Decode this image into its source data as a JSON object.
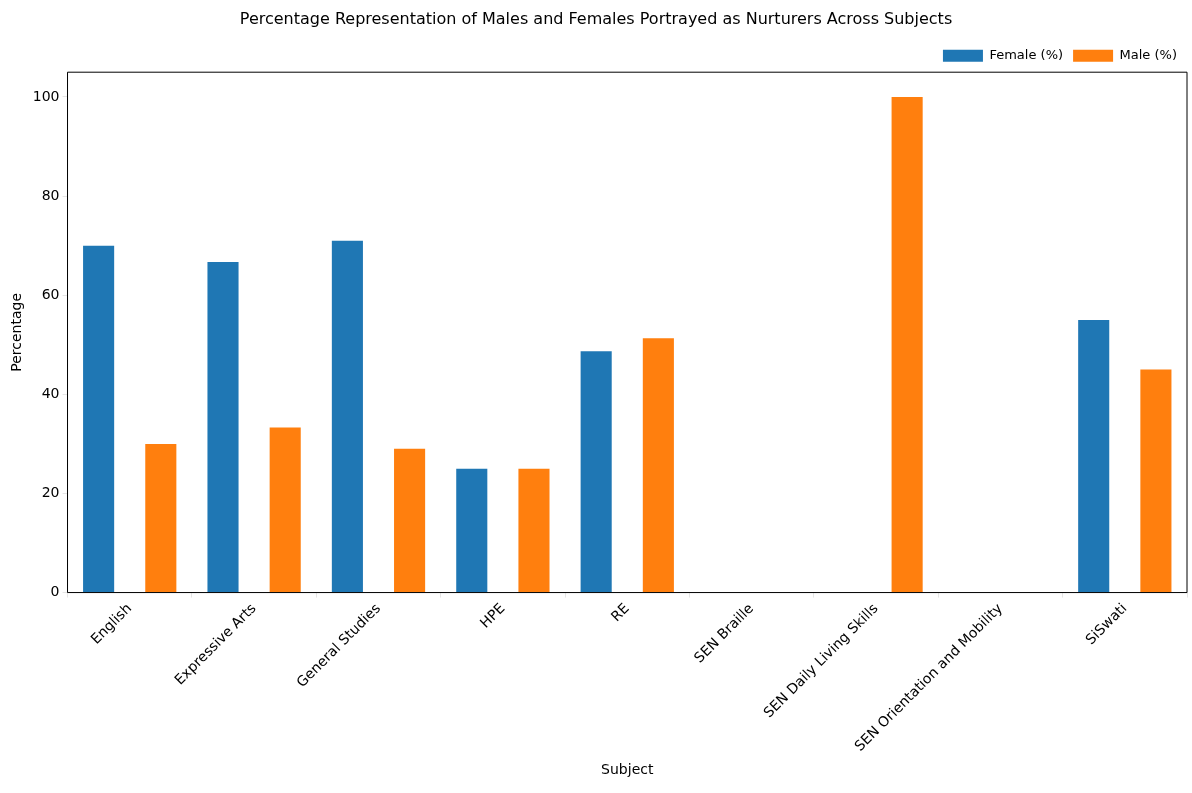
{
  "chart_data": {
    "type": "bar",
    "title": "Percentage Representation of Males and Females Portrayed as Nurturers Across Subjects",
    "xlabel": "Subject",
    "ylabel": "Percentage",
    "categories": [
      "English",
      "Expressive Arts",
      "General Studies",
      "HPE",
      "RE",
      "SEN Braille",
      "SEN Daily Living Skills",
      "SEN Orientation and Mobility",
      "SiSwati"
    ],
    "series": [
      {
        "name": "Female (%)",
        "color": "#1f77b4",
        "values": [
          70,
          66.7,
          71,
          25,
          48.7,
          0,
          0,
          0,
          55
        ]
      },
      {
        "name": "Male (%)",
        "color": "#ff7f0e",
        "values": [
          30,
          33.3,
          29,
          25,
          51.3,
          0,
          100,
          0,
          45
        ]
      }
    ],
    "ylim": [
      0,
      105
    ],
    "yticks": [
      0,
      20,
      40,
      60,
      80,
      100
    ],
    "grid": false,
    "legend": "top right"
  }
}
